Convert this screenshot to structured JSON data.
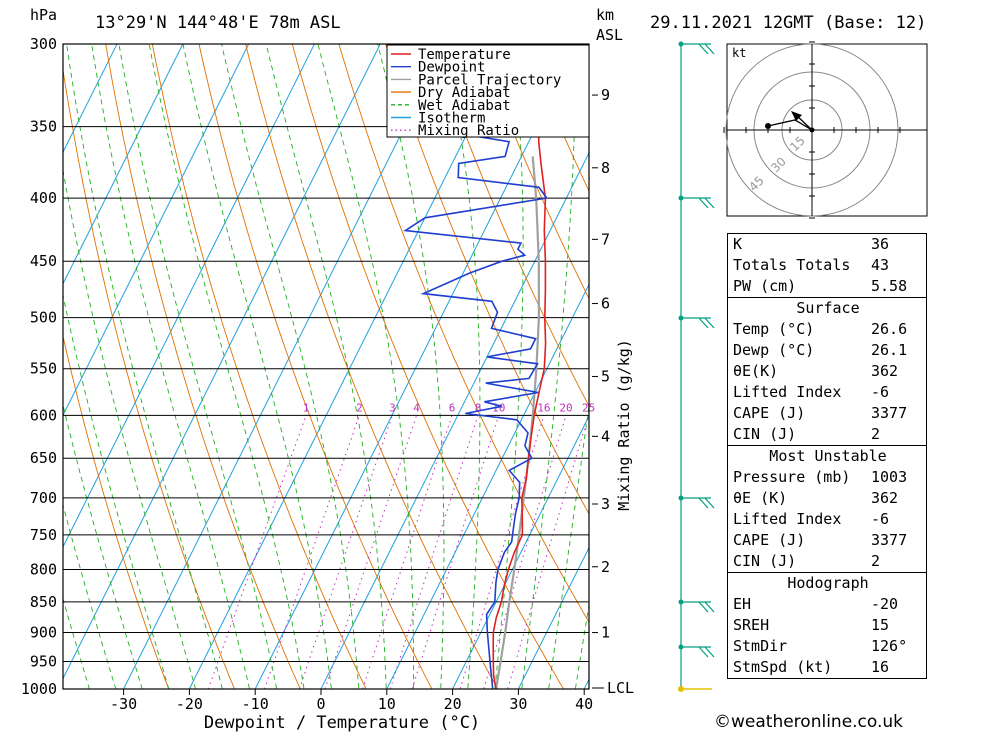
{
  "header": {
    "hpa_label": "hPa",
    "location": "13°29'N 144°48'E 78m ASL",
    "km_label": "km",
    "asl_label": "ASL",
    "datetime": "29.11.2021 12GMT (Base: 12)"
  },
  "chart_data": {
    "type": "line",
    "diagram": "skew-T log-P",
    "xlabel": "Dewpoint / Temperature (°C)",
    "ylabel": "hPa",
    "secondary_ylabel": "Mixing Ratio (g/kg)",
    "xlim": [
      -40,
      40
    ],
    "ylim": [
      1000,
      300
    ],
    "pressure_levels": [
      300,
      350,
      400,
      450,
      500,
      550,
      600,
      650,
      700,
      750,
      800,
      850,
      900,
      950,
      1000
    ],
    "x_ticks": [
      -30,
      -20,
      -10,
      0,
      10,
      20,
      30,
      40
    ],
    "km_ticks": [
      {
        "label": "1",
        "p": 900
      },
      {
        "label": "2",
        "p": 796
      },
      {
        "label": "3",
        "p": 708
      },
      {
        "label": "4",
        "p": 624
      },
      {
        "label": "5",
        "p": 558
      },
      {
        "label": "6",
        "p": 487
      },
      {
        "label": "7",
        "p": 432
      },
      {
        "label": "8",
        "p": 378
      },
      {
        "label": "9",
        "p": 330
      }
    ],
    "lcl_label": "LCL",
    "lcl_pressure": 1000,
    "mixing_ratio_labels": [
      "1",
      "2",
      "3",
      "4",
      "6",
      "8",
      "10",
      "16",
      "20",
      "25"
    ],
    "mixing_ratio_values": [
      1,
      2,
      3,
      4,
      6,
      8,
      10,
      16,
      20,
      25
    ],
    "legend": [
      {
        "name": "Temperature",
        "color": "#e02020",
        "style": "solid"
      },
      {
        "name": "Dewpoint",
        "color": "#1f3fd0",
        "style": "solid"
      },
      {
        "name": "Parcel Trajectory",
        "color": "#a0a0a0",
        "style": "solid"
      },
      {
        "name": "Dry Adiabat",
        "color": "#e07000",
        "style": "solid"
      },
      {
        "name": "Wet Adiabat",
        "color": "#20b020",
        "style": "dashed"
      },
      {
        "name": "Isotherm",
        "color": "#20a0e0",
        "style": "solid"
      },
      {
        "name": "Mixing Ratio",
        "color": "#c030c0",
        "style": "dotted"
      }
    ],
    "series": [
      {
        "name": "Temperature",
        "points": [
          [
            1000,
            26.6
          ],
          [
            975,
            25.2
          ],
          [
            950,
            24.1
          ],
          [
            925,
            23.0
          ],
          [
            900,
            21.9
          ],
          [
            875,
            21.2
          ],
          [
            850,
            20.8
          ],
          [
            825,
            20.0
          ],
          [
            800,
            19.4
          ],
          [
            775,
            19.0
          ],
          [
            750,
            18.9
          ],
          [
            725,
            17.5
          ],
          [
            700,
            16.0
          ],
          [
            675,
            15.2
          ],
          [
            650,
            14.0
          ],
          [
            625,
            12.8
          ],
          [
            600,
            11.6
          ],
          [
            575,
            10.6
          ],
          [
            550,
            9.6
          ],
          [
            525,
            7.9
          ],
          [
            500,
            5.8
          ],
          [
            475,
            3.8
          ],
          [
            450,
            1.6
          ],
          [
            425,
            -0.9
          ],
          [
            400,
            -3.2
          ],
          [
            375,
            -6.5
          ],
          [
            360,
            -8.5
          ],
          [
            350,
            -9.6
          ],
          [
            325,
            -13.2
          ],
          [
            300,
            -17.8
          ]
        ]
      },
      {
        "name": "Dewpoint",
        "points": [
          [
            1000,
            26.1
          ],
          [
            950,
            23.6
          ],
          [
            900,
            21.0
          ],
          [
            870,
            19.5
          ],
          [
            850,
            19.8
          ],
          [
            820,
            18.5
          ],
          [
            800,
            17.8
          ],
          [
            775,
            17.5
          ],
          [
            760,
            17.8
          ],
          [
            740,
            17.0
          ],
          [
            720,
            16.2
          ],
          [
            700,
            15.6
          ],
          [
            680,
            14.5
          ],
          [
            665,
            12.0
          ],
          [
            650,
            14.5
          ],
          [
            635,
            12.5
          ],
          [
            620,
            12.0
          ],
          [
            605,
            9.3
          ],
          [
            598,
            1.0
          ],
          [
            590,
            6.0
          ],
          [
            585,
            3.0
          ],
          [
            575,
            10.5
          ],
          [
            565,
            1.8
          ],
          [
            560,
            8.0
          ],
          [
            545,
            8.2
          ],
          [
            538,
            0.0
          ],
          [
            530,
            6.0
          ],
          [
            520,
            6.0
          ],
          [
            510,
            -1.5
          ],
          [
            495,
            -1.8
          ],
          [
            485,
            -3.5
          ],
          [
            478,
            -14.5
          ],
          [
            460,
            -9.0
          ],
          [
            450,
            -5.0
          ],
          [
            445,
            -2.0
          ],
          [
            440,
            -3.5
          ],
          [
            435,
            -3.5
          ],
          [
            425,
            -22.0
          ],
          [
            415,
            -20.0
          ],
          [
            400,
            -3.0
          ],
          [
            392,
            -5.0
          ],
          [
            385,
            -18.0
          ],
          [
            375,
            -19.0
          ],
          [
            370,
            -12.5
          ],
          [
            360,
            -13.0
          ],
          [
            355,
            -20.5
          ],
          [
            320,
            -22.0
          ],
          [
            310,
            -19.5
          ],
          [
            304,
            -11.0
          ],
          [
            300,
            -11.5
          ]
        ]
      },
      {
        "name": "Parcel Trajectory",
        "points": [
          [
            1000,
            26.6
          ],
          [
            950,
            25.2
          ],
          [
            900,
            23.7
          ],
          [
            850,
            22.0
          ],
          [
            800,
            20.3
          ],
          [
            750,
            18.4
          ],
          [
            700,
            16.3
          ],
          [
            650,
            14.0
          ],
          [
            600,
            11.4
          ],
          [
            550,
            8.4
          ],
          [
            500,
            4.9
          ],
          [
            450,
            0.6
          ],
          [
            400,
            -4.6
          ],
          [
            370,
            -8.3
          ]
        ]
      }
    ]
  },
  "hodograph": {
    "unit_label": "kt",
    "ring_labels": [
      "15",
      "30",
      "45"
    ]
  },
  "stats": {
    "top": [
      {
        "label": "K",
        "value": "36"
      },
      {
        "label": "Totals Totals",
        "value": "43"
      },
      {
        "label": "PW (cm)",
        "value": "5.58"
      }
    ],
    "surface": {
      "title": "Surface",
      "rows": [
        {
          "label": "Temp (°C)",
          "value": "26.6"
        },
        {
          "label": "Dewp (°C)",
          "value": "26.1"
        },
        {
          "label": "θE(K)",
          "value": "362"
        },
        {
          "label": "Lifted Index",
          "value": "-6"
        },
        {
          "label": "CAPE (J)",
          "value": "3377"
        },
        {
          "label": "CIN (J)",
          "value": "2"
        }
      ]
    },
    "most_unstable": {
      "title": "Most Unstable",
      "rows": [
        {
          "label": "Pressure (mb)",
          "value": "1003"
        },
        {
          "label": "θE (K)",
          "value": "362"
        },
        {
          "label": "Lifted Index",
          "value": "-6"
        },
        {
          "label": "CAPE (J)",
          "value": "3377"
        },
        {
          "label": "CIN (J)",
          "value": "2"
        }
      ]
    },
    "hodograph_stats": {
      "title": "Hodograph",
      "rows": [
        {
          "label": "EH",
          "value": "-20"
        },
        {
          "label": "SREH",
          "value": "15"
        },
        {
          "label": "StmDir",
          "value": "126°"
        },
        {
          "label": "StmSpd (kt)",
          "value": "16"
        }
      ]
    }
  },
  "footer": {
    "copyright": "©weatheronline.co.uk"
  },
  "colors": {
    "temperature": "#e02020",
    "dewpoint": "#1f3fd0",
    "parcel": "#a0a0a0",
    "dry_adiabat": "#e07000",
    "wet_adiabat": "#20b020",
    "isotherm": "#20a0e0",
    "mixing_ratio": "#c030c0",
    "wind": "#00a080",
    "surface_wind": "#e0c000"
  }
}
